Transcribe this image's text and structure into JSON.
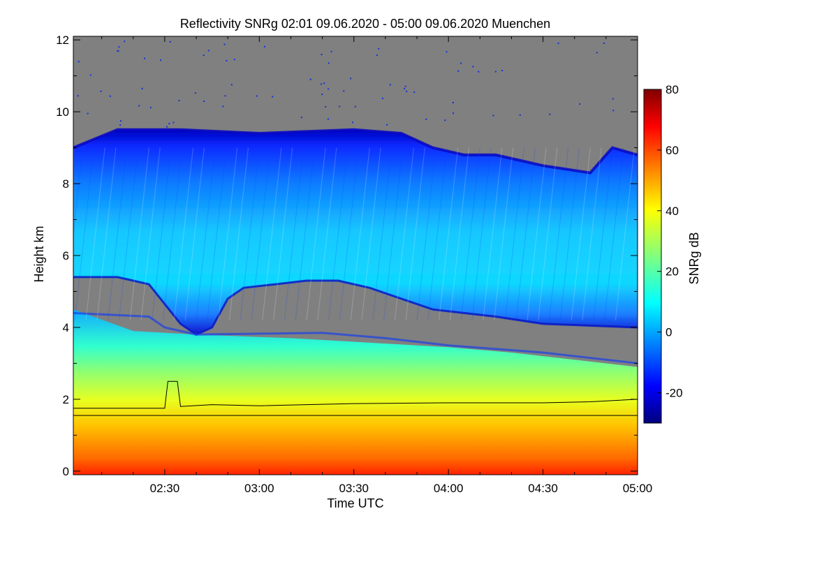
{
  "chart_data": {
    "type": "heatmap",
    "title": "Reflectivity SNRg   02:01 09.06.2020 - 05:00 09.06.2020 Muenchen",
    "xlabel": "Time UTC",
    "ylabel": "Height km",
    "x_ticks": [
      "02:30",
      "03:00",
      "03:30",
      "04:00",
      "04:30",
      "05:00"
    ],
    "x_tick_values_min": [
      150,
      180,
      210,
      240,
      270,
      300
    ],
    "xlim_min": [
      121,
      300
    ],
    "y_ticks": [
      0,
      2,
      4,
      6,
      8,
      10,
      12
    ],
    "ylim": [
      -0.1,
      12.1
    ],
    "colorbar": {
      "label": "SNRg dB",
      "ticks": [
        -20,
        0,
        20,
        40,
        60,
        80
      ],
      "range": [
        -30,
        80
      ],
      "colormap": "jet"
    },
    "no_signal_color": "#808080",
    "layers": {
      "cloud_top_km": [
        [
          121,
          9.0
        ],
        [
          135,
          9.5
        ],
        [
          155,
          9.5
        ],
        [
          180,
          9.4
        ],
        [
          210,
          9.5
        ],
        [
          225,
          9.4
        ],
        [
          235,
          9.0
        ],
        [
          245,
          8.8
        ],
        [
          255,
          8.8
        ],
        [
          270,
          8.5
        ],
        [
          285,
          8.3
        ],
        [
          292,
          9.0
        ],
        [
          300,
          8.8
        ]
      ],
      "upper_cloud_base_km": [
        [
          121,
          5.4
        ],
        [
          135,
          5.4
        ],
        [
          140,
          5.3
        ],
        [
          145,
          5.2
        ],
        [
          155,
          4.1
        ],
        [
          160,
          3.8
        ],
        [
          165,
          4.0
        ],
        [
          170,
          4.8
        ],
        [
          175,
          5.1
        ],
        [
          185,
          5.2
        ],
        [
          195,
          5.3
        ],
        [
          205,
          5.3
        ],
        [
          215,
          5.1
        ],
        [
          225,
          4.8
        ],
        [
          235,
          4.5
        ],
        [
          245,
          4.4
        ],
        [
          255,
          4.3
        ],
        [
          270,
          4.1
        ],
        [
          285,
          4.05
        ],
        [
          300,
          4.0
        ]
      ],
      "lower_layer_top_km": [
        [
          121,
          4.5
        ],
        [
          140,
          3.9
        ],
        [
          160,
          3.8
        ],
        [
          190,
          3.7
        ],
        [
          220,
          3.55
        ],
        [
          240,
          3.45
        ],
        [
          260,
          3.3
        ],
        [
          280,
          3.1
        ],
        [
          300,
          2.9
        ]
      ],
      "no_signal_gap_upper_km": [
        [
          121,
          4.4
        ],
        [
          145,
          4.3
        ],
        [
          150,
          4.0
        ],
        [
          160,
          3.8
        ],
        [
          200,
          3.85
        ],
        [
          220,
          3.7
        ],
        [
          240,
          3.5
        ],
        [
          270,
          3.3
        ],
        [
          300,
          3.0
        ]
      ]
    },
    "lines": [
      {
        "name": "",
        "color": "#000000",
        "points": [
          [
            121,
            1.75
          ],
          [
            150,
            1.75
          ],
          [
            151,
            2.5
          ],
          [
            154,
            2.5
          ],
          [
            155,
            1.8
          ],
          [
            165,
            1.85
          ],
          [
            180,
            1.82
          ],
          [
            195,
            1.85
          ],
          [
            210,
            1.88
          ],
          [
            240,
            1.9
          ],
          [
            270,
            1.9
          ],
          [
            285,
            1.93
          ],
          [
            300,
            2.0
          ]
        ]
      },
      {
        "name": "",
        "color": "#000000",
        "points": [
          [
            121,
            1.55
          ],
          [
            300,
            1.55
          ]
        ]
      }
    ]
  }
}
